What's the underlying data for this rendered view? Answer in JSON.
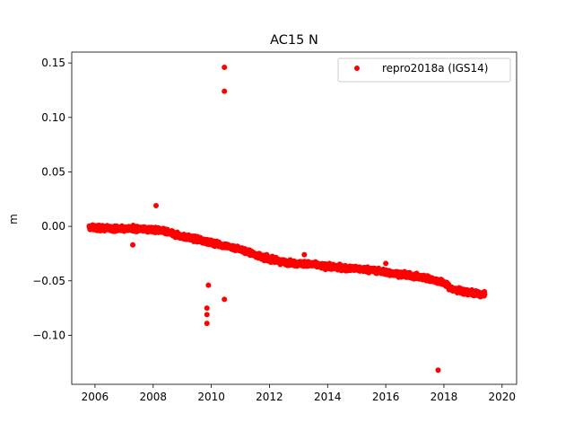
{
  "chart_data": {
    "type": "scatter",
    "title": "AC15 N",
    "xlabel": "",
    "ylabel": "m",
    "xlim": [
      2005.2,
      2020.5
    ],
    "ylim": [
      -0.145,
      0.16
    ],
    "x_ticks": [
      2006,
      2008,
      2010,
      2012,
      2014,
      2016,
      2018,
      2020
    ],
    "x_tick_labels": [
      "2006",
      "2008",
      "2010",
      "2012",
      "2014",
      "2016",
      "2018",
      "2020"
    ],
    "y_ticks": [
      -0.1,
      -0.05,
      0.0,
      0.05,
      0.1,
      0.15
    ],
    "y_tick_labels": [
      "−0.10",
      "−0.05",
      "0.00",
      "0.05",
      "0.10",
      "0.15"
    ],
    "grid": false,
    "legend_position": "upper-right",
    "colors": {
      "series": "#ff0000"
    },
    "series": [
      {
        "name": "repro2018a (IGS14)",
        "marker": "circle",
        "color": "#ff0000",
        "trend": [
          [
            2005.8,
            -0.001
          ],
          [
            2006.5,
            -0.002
          ],
          [
            2007.5,
            -0.002
          ],
          [
            2008.3,
            -0.004
          ],
          [
            2008.8,
            -0.008
          ],
          [
            2009.5,
            -0.012
          ],
          [
            2010.0,
            -0.015
          ],
          [
            2010.5,
            -0.018
          ],
          [
            2011.0,
            -0.021
          ],
          [
            2011.5,
            -0.026
          ],
          [
            2012.0,
            -0.03
          ],
          [
            2012.5,
            -0.033
          ],
          [
            2013.0,
            -0.034
          ],
          [
            2013.5,
            -0.035
          ],
          [
            2014.0,
            -0.037
          ],
          [
            2014.5,
            -0.038
          ],
          [
            2015.0,
            -0.039
          ],
          [
            2015.5,
            -0.04
          ],
          [
            2016.0,
            -0.042
          ],
          [
            2016.5,
            -0.044
          ],
          [
            2017.0,
            -0.046
          ],
          [
            2017.5,
            -0.048
          ],
          [
            2018.0,
            -0.052
          ],
          [
            2018.3,
            -0.058
          ],
          [
            2018.7,
            -0.06
          ],
          [
            2019.2,
            -0.062
          ],
          [
            2019.4,
            -0.063
          ]
        ],
        "outliers": [
          [
            2010.45,
            0.146
          ],
          [
            2010.45,
            0.124
          ],
          [
            2008.1,
            0.019
          ],
          [
            2007.3,
            -0.017
          ],
          [
            2013.2,
            -0.026
          ],
          [
            2016.0,
            -0.034
          ],
          [
            2009.9,
            -0.054
          ],
          [
            2010.45,
            -0.067
          ],
          [
            2009.85,
            -0.075
          ],
          [
            2009.85,
            -0.081
          ],
          [
            2009.85,
            -0.089
          ],
          [
            2017.8,
            -0.132
          ]
        ]
      }
    ]
  }
}
